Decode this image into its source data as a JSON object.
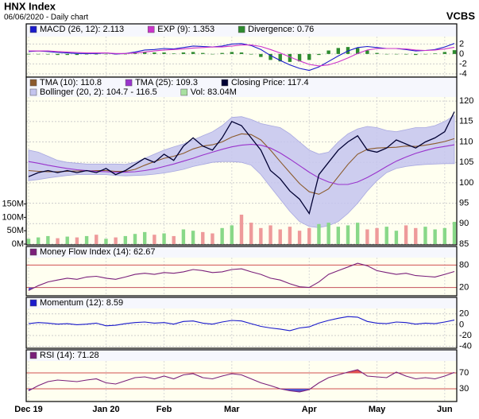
{
  "header": {
    "title": "HNX Index",
    "subtitle": "06/06/2020 - Daily chart",
    "source": "VCBS"
  },
  "chart_data": [
    {
      "type": "line",
      "ylim": [
        -4.5,
        3.5
      ],
      "yticks": [
        -4,
        -2,
        0,
        2
      ],
      "grid": true,
      "series": [
        {
          "name": "MACD (26, 12): 2.113",
          "color": "#1a1acc",
          "mark": "line",
          "values": [
            0.5,
            0.6,
            0.5,
            0.3,
            0.2,
            0.1,
            0.1,
            0.1,
            0.2,
            0,
            0.1,
            0.4,
            0.8,
            0.9,
            1.1,
            1.0,
            1.3,
            1.6,
            1.5,
            1.4,
            1.6,
            2.0,
            2.1,
            1.7,
            0.9,
            -0.3,
            -1.3,
            -2.2,
            -2.9,
            -3.3,
            -2.6,
            -1.5,
            -0.4,
            0.6,
            1.3,
            1.5,
            1.3,
            1.1,
            1.1,
            0.9,
            0.6,
            0.7,
            0.9,
            1.4,
            2.113
          ]
        },
        {
          "name": "EXP (9): 1.353",
          "color": "#cc33cc",
          "mark": "line",
          "values": [
            0.6,
            0.6,
            0.6,
            0.5,
            0.4,
            0.3,
            0.2,
            0.2,
            0.2,
            0.1,
            0.1,
            0.2,
            0.4,
            0.6,
            0.8,
            0.9,
            1.0,
            1.2,
            1.3,
            1.4,
            1.4,
            1.6,
            1.8,
            1.8,
            1.5,
            0.9,
            0.2,
            -0.6,
            -1.4,
            -2.1,
            -2.4,
            -2.2,
            -1.6,
            -0.8,
            0.1,
            0.8,
            1.1,
            1.1,
            1.1,
            1.0,
            0.8,
            0.7,
            0.8,
            1.0,
            1.353
          ]
        },
        {
          "name": "Divergence: 0.76",
          "color": "#2e8b2e",
          "mark": "bar",
          "values": [
            -0.1,
            0,
            -0.1,
            -0.2,
            -0.2,
            -0.2,
            -0.1,
            -0.1,
            0,
            -0.1,
            0,
            0.2,
            0.4,
            0.3,
            0.3,
            0.1,
            0.3,
            0.4,
            0.2,
            0,
            0.2,
            0.4,
            0.3,
            -0.1,
            -0.6,
            -1.2,
            -1.5,
            -1.6,
            -1.5,
            -1.2,
            -0.2,
            0.7,
            1.2,
            1.4,
            1.2,
            0.7,
            0.2,
            0,
            0,
            -0.1,
            -0.2,
            0,
            0.1,
            0.4,
            0.76
          ]
        }
      ]
    },
    {
      "type": "line",
      "ylim": [
        85,
        121
      ],
      "yticks": [
        85,
        90,
        95,
        100,
        105,
        110,
        115,
        120
      ],
      "grid": true,
      "y2lim": [
        0,
        550
      ],
      "y2ticks": [
        {
          "value": 0,
          "label": "0M"
        },
        {
          "value": 50,
          "label": "50M"
        },
        {
          "value": 100,
          "label": "100M"
        },
        {
          "value": 150,
          "label": "150M"
        }
      ],
      "series": [
        {
          "name": "TMA (10): 110.8",
          "color": "#8b5a2b",
          "mark": "line",
          "values": [
            103,
            102.8,
            102.7,
            102.7,
            102.8,
            102.9,
            102.9,
            103,
            103,
            102.8,
            102.8,
            103.3,
            104.3,
            105.2,
            106,
            106.5,
            107.2,
            108.3,
            109,
            109.3,
            110,
            111.2,
            112,
            111.8,
            110.5,
            108,
            105.2,
            102.5,
            99.8,
            97.8,
            97.2,
            98.5,
            101.5,
            104.5,
            107,
            108.2,
            108.5,
            108.6,
            108.7,
            109,
            108.9,
            109.2,
            109.6,
            110.1,
            110.8
          ]
        },
        {
          "name": "TMA (25): 109.3",
          "color": "#9933cc",
          "mark": "line",
          "values": [
            105.2,
            104.8,
            104.3,
            103.9,
            103.5,
            103.2,
            103,
            102.8,
            102.7,
            102.6,
            102.6,
            102.7,
            103,
            103.4,
            104,
            104.6,
            105.3,
            106,
            106.8,
            107.5,
            108.2,
            108.8,
            109.2,
            109.4,
            109.2,
            108.5,
            107.3,
            105.8,
            104.2,
            102.6,
            101.2,
            100.2,
            99.6,
            99.6,
            100.2,
            101.3,
            102.6,
            104,
            105.3,
            106.3,
            107.2,
            107.9,
            108.5,
            108.9,
            109.3
          ]
        },
        {
          "name": "Closing Price: 117.4",
          "color": "#000033",
          "mark": "close",
          "values": [
            101.5,
            102.5,
            103,
            102.5,
            103,
            102.5,
            103,
            102.5,
            103.5,
            102,
            103,
            104.5,
            106,
            105,
            107,
            105.5,
            109,
            111,
            109,
            108,
            111,
            115,
            114,
            111,
            108,
            103,
            101,
            98,
            96,
            92.5,
            102,
            105,
            108,
            110,
            111.5,
            108,
            107.5,
            108.5,
            110.5,
            109.5,
            108.5,
            110,
            111,
            112.5,
            117.4
          ]
        },
        {
          "name": "Bollinger (20, 2): 104.7 - 116.5",
          "color": "#c4c4ee",
          "mark": "band",
          "upper": [
            108,
            107.5,
            106.5,
            105.5,
            105,
            104.8,
            104.6,
            104.6,
            104.6,
            104.6,
            104.5,
            105,
            106,
            107,
            108,
            108.8,
            109.5,
            110.5,
            111.5,
            112.5,
            114,
            116,
            116.2,
            115.5,
            114.5,
            114,
            113.5,
            112,
            110,
            108,
            107,
            107.5,
            110,
            112,
            113.2,
            113.8,
            113.5,
            112.8,
            112.5,
            113,
            113.5,
            113.5,
            114,
            115,
            116.5
          ],
          "lower": [
            100.5,
            100.8,
            101.2,
            101.5,
            101.8,
            102,
            102,
            102,
            102,
            101.8,
            101.7,
            101.8,
            101.9,
            102.1,
            102.4,
            102.8,
            103.3,
            104,
            104.5,
            105,
            105.2,
            105.2,
            105,
            104.3,
            102,
            99,
            96,
            93,
            90.5,
            89.3,
            89,
            89.5,
            90.5,
            92.5,
            95,
            98,
            100.5,
            102.5,
            103.5,
            104,
            104.3,
            104.5,
            104.6,
            104.7,
            104.7
          ]
        },
        {
          "name": "Vol: 83.04M",
          "color": "#a8e0a0",
          "up_color": "#88d888",
          "down_color": "#ee9a9a",
          "mark": "bar",
          "axis": "y2",
          "values": [
            20,
            25,
            30,
            22,
            28,
            25,
            30,
            35,
            20,
            25,
            30,
            38,
            45,
            35,
            40,
            30,
            55,
            50,
            45,
            40,
            60,
            70,
            110,
            80,
            60,
            70,
            55,
            65,
            50,
            60,
            75,
            80,
            65,
            70,
            80,
            55,
            60,
            65,
            50,
            70,
            60,
            65,
            55,
            60,
            83.04
          ]
        }
      ]
    },
    {
      "type": "line",
      "ylim": [
        0,
        100
      ],
      "yticks": [
        20,
        80
      ],
      "tick_line_color": "#d05050",
      "series": [
        {
          "name": "Money Flow Index (14): 62.67",
          "color": "#7a1f7a",
          "mark": "line",
          "fill_under": "#5555cc",
          "values": [
            12,
            25,
            35,
            40,
            45,
            42,
            48,
            50,
            45,
            42,
            48,
            55,
            58,
            55,
            60,
            58,
            62,
            68,
            65,
            60,
            62,
            68,
            70,
            62,
            55,
            45,
            40,
            30,
            22,
            20,
            35,
            55,
            65,
            75,
            85,
            78,
            65,
            60,
            55,
            58,
            52,
            50,
            48,
            55,
            62.67
          ]
        }
      ]
    },
    {
      "type": "line",
      "ylim": [
        -42,
        30
      ],
      "yticks": [
        -40,
        -20,
        0,
        20
      ],
      "grid": true,
      "series": [
        {
          "name": "Momentum (12): 8.59",
          "color": "#1a1acc",
          "mark": "line",
          "values": [
            2,
            4,
            3,
            1,
            2,
            0,
            1,
            3,
            -2,
            -1,
            2,
            4,
            5,
            3,
            4,
            1,
            6,
            7,
            3,
            1,
            5,
            8,
            7,
            2,
            -3,
            -6,
            -8,
            -11,
            -6,
            -4,
            3,
            8,
            12,
            15,
            14,
            6,
            3,
            2,
            5,
            4,
            1,
            3,
            2,
            5,
            8.59
          ]
        }
      ]
    },
    {
      "type": "line",
      "ylim": [
        0,
        100
      ],
      "yticks": [
        30,
        70
      ],
      "tick_line_color": "#d05050",
      "categories": [
        "Dec 19",
        null,
        null,
        null,
        null,
        null,
        null,
        null,
        "Jan 20",
        null,
        null,
        null,
        null,
        null,
        "Feb",
        null,
        null,
        null,
        null,
        null,
        null,
        "Mar",
        null,
        null,
        null,
        null,
        null,
        null,
        null,
        "Apr",
        null,
        null,
        null,
        null,
        null,
        null,
        "May",
        null,
        null,
        null,
        null,
        null,
        null,
        "Jun",
        null
      ],
      "series": [
        {
          "name": "RSI (14): 71.28",
          "color": "#7a1f7a",
          "mark": "line",
          "fill_over": "#e05050",
          "fill_under": "#5555cc",
          "values": [
            25,
            38,
            48,
            52,
            50,
            48,
            52,
            55,
            45,
            42,
            50,
            58,
            60,
            55,
            62,
            55,
            65,
            68,
            58,
            55,
            62,
            68,
            65,
            55,
            45,
            38,
            30,
            25,
            22,
            28,
            45,
            58,
            65,
            72,
            78,
            62,
            60,
            58,
            72,
            62,
            55,
            58,
            55,
            62,
            71.28
          ]
        }
      ]
    }
  ]
}
